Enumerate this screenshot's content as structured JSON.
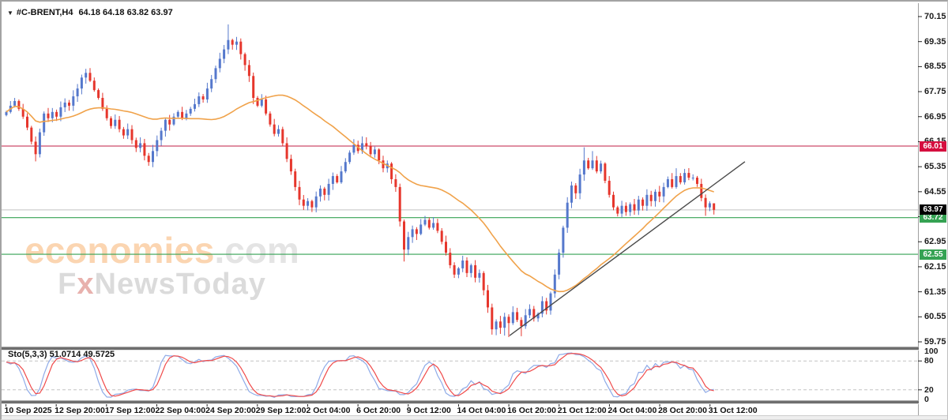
{
  "window": {
    "dropdown_icon": "▼",
    "symbol": "#C-BRENT,H4",
    "ohlc": "64.18 64.18 63.82 63.97"
  },
  "watermark": {
    "brand": "economies",
    "tld": ".com",
    "tagline_f": "F",
    "tagline_x": "x",
    "tagline_rest": "NewsToday"
  },
  "indicator": {
    "name": "Sto(5,3,3)",
    "k_value": "51.0714",
    "d_value": "49.5725",
    "k_period": 5,
    "d_period": 3,
    "slowing": 3,
    "k_color": "#8fabe8",
    "d_color": "#f04b4b",
    "levels": [
      80,
      20
    ],
    "scale_labels": [
      "100",
      "80",
      "20",
      "0"
    ],
    "dashed_color": "#c4c4c4"
  },
  "chart_data": {
    "type": "candlestick",
    "title": "#C-BRENT,H4",
    "symbol": "#C-BRENT",
    "timeframe": "H4",
    "bull_color": "#5578cc",
    "bear_color": "#e6362c",
    "first_open": 67.0,
    "closes": [
      67.1,
      67.3,
      67.45,
      67.2,
      66.95,
      66.6,
      66.15,
      65.75,
      66.45,
      67.05,
      66.9,
      67.1,
      66.95,
      67.25,
      67.4,
      67.3,
      67.6,
      67.85,
      68.2,
      68.35,
      68.1,
      67.8,
      67.55,
      67.2,
      66.9,
      66.65,
      66.85,
      66.55,
      66.35,
      66.55,
      66.2,
      65.95,
      66.1,
      65.7,
      65.5,
      65.85,
      66.2,
      66.5,
      66.85,
      66.7,
      66.95,
      67.1,
      66.9,
      67.05,
      67.2,
      67.35,
      67.6,
      67.5,
      67.85,
      68.15,
      68.5,
      68.8,
      69.1,
      69.4,
      69.25,
      69.35,
      68.95,
      68.6,
      68.25,
      67.55,
      67.3,
      67.5,
      67.05,
      66.7,
      66.4,
      66.55,
      66.1,
      65.6,
      65.2,
      64.7,
      64.3,
      64.1,
      64.25,
      64.05,
      64.4,
      64.65,
      64.45,
      64.8,
      65.05,
      64.85,
      65.2,
      65.5,
      65.8,
      66.05,
      65.85,
      66.1,
      66.0,
      65.75,
      65.9,
      65.55,
      65.3,
      65.45,
      64.95,
      64.7,
      63.6,
      62.7,
      63.1,
      63.35,
      63.2,
      63.5,
      63.65,
      63.4,
      63.55,
      63.3,
      62.95,
      62.6,
      62.2,
      61.9,
      62.1,
      62.35,
      61.95,
      62.2,
      61.8,
      61.95,
      61.4,
      60.85,
      60.15,
      60.4,
      60.2,
      60.55,
      60.35,
      60.7,
      60.45,
      60.25,
      60.6,
      60.8,
      60.5,
      60.65,
      61.05,
      60.75,
      61.3,
      61.9,
      62.6,
      63.4,
      64.2,
      64.75,
      64.5,
      65.1,
      65.55,
      65.3,
      65.55,
      65.2,
      65.45,
      64.9,
      64.45,
      64.05,
      63.85,
      64.1,
      63.9,
      64.15,
      63.95,
      64.3,
      64.1,
      64.45,
      64.25,
      64.55,
      64.4,
      64.7,
      64.95,
      64.7,
      65.05,
      64.85,
      65.15,
      65.0,
      65.0,
      64.8,
      64.35,
      64.05,
      64.18,
      63.97
    ],
    "wick_overrides": {
      "7": {
        "l": 65.52
      },
      "19": {
        "h": 68.48
      },
      "34": {
        "l": 65.38
      },
      "53": {
        "h": 69.9
      },
      "70": {
        "l": 64.12
      },
      "73": {
        "l": 63.9
      },
      "85": {
        "h": 66.32
      },
      "95": {
        "l": 62.32
      },
      "116": {
        "l": 59.98
      },
      "119": {
        "l": 59.95
      },
      "120": {
        "l": 59.9
      },
      "123": {
        "l": 59.93
      },
      "138": {
        "h": 65.97
      },
      "140": {
        "h": 65.85
      },
      "146": {
        "l": 63.76
      },
      "147": {
        "l": 63.74
      },
      "160": {
        "h": 65.3
      },
      "162": {
        "h": 65.28
      },
      "167": {
        "l": 63.78
      },
      "169": {
        "h": 64.18,
        "l": 63.82
      }
    },
    "last": {
      "open": 64.18,
      "high": 64.18,
      "low": 63.82,
      "close": 63.97
    },
    "moving_average": {
      "type": "SMA",
      "period": 30,
      "color": "#f0a24a"
    },
    "levels": [
      {
        "label": "66.01",
        "price": 66.01,
        "line_color": "#c01c45",
        "badge_bg": "#d50f3f",
        "role": "resistance"
      },
      {
        "label": "63.72",
        "price": 63.72,
        "line_color": "#35a253",
        "badge_bg": "#35a253",
        "role": "support"
      },
      {
        "label": "62.55",
        "price": 62.55,
        "line_color": "#35a253",
        "badge_bg": "#35a253",
        "role": "support"
      }
    ],
    "current_price": {
      "label": "63.97",
      "price": 63.97,
      "line_color": "#d9d9d9",
      "badge_bg": "#000000"
    },
    "trendline": {
      "from_index": 120.2,
      "from_price": 59.95,
      "to_index": 176.4,
      "to_price": 65.51,
      "color": "#4a4a4a"
    },
    "y_axis": {
      "top_tick": 70.15,
      "bottom_tick": 59.75,
      "step": 0.8,
      "ticks": [
        70.15,
        69.35,
        68.55,
        67.75,
        66.95,
        66.15,
        65.35,
        64.55,
        63.75,
        62.95,
        62.15,
        61.35,
        60.55,
        59.75
      ]
    },
    "x_axis": {
      "labels": [
        "10 Sep 2025",
        "12 Sep 20:00",
        "17 Sep 12:00",
        "22 Sep 04:00",
        "24 Sep 20:00",
        "29 Sep 12:00",
        "2 Oct 04:00",
        "6 Oct 20:00",
        "9 Oct 12:00",
        "14 Oct 04:00",
        "16 Oct 20:00",
        "21 Oct 12:00",
        "24 Oct 04:00",
        "28 Oct 20:00",
        "31 Oct 12:00"
      ]
    }
  }
}
